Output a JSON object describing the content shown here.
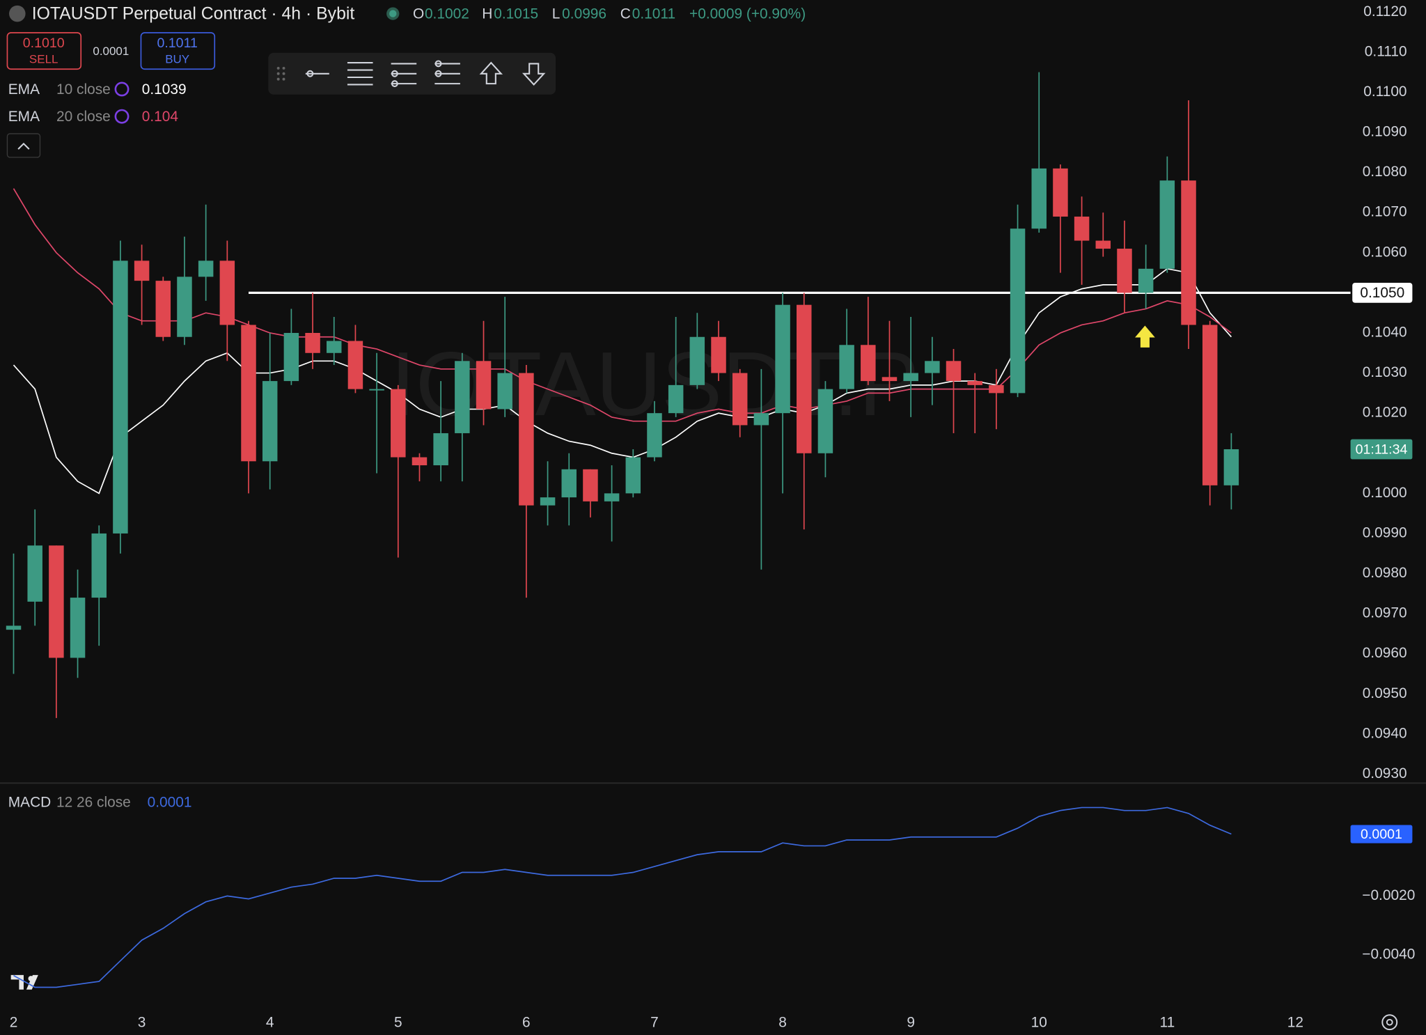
{
  "chart_data": {
    "type": "candlestick",
    "title": "IOTAUSDT Perpetual Contract · 4h · Bybit",
    "ohlc_header": {
      "o_label": "O",
      "o": 0.1002,
      "h_label": "H",
      "h": 0.1015,
      "l_label": "L",
      "l": 0.0996,
      "c_label": "C",
      "c": 0.1011,
      "change": "+0.0009 (+0.90%)"
    },
    "order_panel": {
      "sell_price": {
        "value": 0.101,
        "label": "0.1010"
      },
      "sell_label": "SELL",
      "spread": 0.0001,
      "buy_price": 0.1011,
      "buy_label": "BUY"
    },
    "watermark": "IOTAUSDT.P",
    "up_color": "#3d9a83",
    "down_color": "#e0474f",
    "grid": false,
    "x": [
      2,
      2.1667,
      2.3333,
      2.5,
      2.6667,
      2.8333,
      3,
      3.1667,
      3.3333,
      3.5,
      3.6667,
      3.8333,
      4,
      4.1667,
      4.3333,
      4.5,
      4.6667,
      4.8333,
      5,
      5.1667,
      5.3333,
      5.5,
      5.6667,
      5.8333,
      6,
      6.1667,
      6.3333,
      6.5,
      6.6667,
      6.8333,
      7,
      7.1667,
      7.3333,
      7.5,
      7.6667,
      7.8333,
      8,
      8.1667,
      8.3333,
      8.5,
      8.6667,
      8.8333,
      9,
      9.1667,
      9.3333,
      9.5,
      9.6667,
      9.8333,
      10,
      10.1667,
      10.3333,
      10.5,
      10.6667,
      10.8333,
      11,
      11.1667,
      11.3333,
      11.5
    ],
    "open": [
      0.0966,
      0.0973,
      0.0987,
      0.0959,
      0.0974,
      0.099,
      0.1058,
      0.1053,
      0.1039,
      0.1054,
      0.1058,
      0.1042,
      0.1008,
      0.1028,
      0.104,
      0.1035,
      0.1038,
      0.1026,
      0.1026,
      0.1009,
      0.1007,
      0.1015,
      0.1033,
      0.1021,
      0.103,
      0.0997,
      0.0999,
      0.1006,
      0.0998,
      0.1,
      0.1009,
      0.102,
      0.1027,
      0.1039,
      0.103,
      0.1017,
      0.102,
      0.1047,
      0.101,
      0.1026,
      0.1037,
      0.1029,
      0.1028,
      0.103,
      0.1033,
      0.1028,
      0.1027,
      0.1025,
      0.1066,
      0.1081,
      0.1069,
      0.1063,
      0.1061,
      0.105,
      0.1056,
      0.1078,
      0.1042,
      0.1002
    ],
    "high": [
      0.0985,
      0.0996,
      0.0987,
      0.0981,
      0.0992,
      0.1063,
      0.1062,
      0.1054,
      0.1064,
      0.1072,
      0.1063,
      0.1043,
      0.104,
      0.1046,
      0.105,
      0.1044,
      0.1042,
      0.1035,
      0.1027,
      0.101,
      0.1028,
      0.1035,
      0.1043,
      0.1049,
      0.1032,
      0.1008,
      0.101,
      0.1006,
      0.1007,
      0.1011,
      0.1023,
      0.1044,
      0.1045,
      0.1043,
      0.1031,
      0.1031,
      0.105,
      0.105,
      0.1028,
      0.1046,
      0.1049,
      0.1043,
      0.1044,
      0.1039,
      0.1036,
      0.103,
      0.1031,
      0.1072,
      0.1105,
      0.1082,
      0.1074,
      0.107,
      0.1068,
      0.1062,
      0.1084,
      0.1098,
      0.1043,
      0.1015
    ],
    "low": [
      0.0955,
      0.0967,
      0.0944,
      0.0954,
      0.0962,
      0.0985,
      0.1042,
      0.1038,
      0.1037,
      0.1048,
      0.1033,
      0.1,
      0.1001,
      0.1027,
      0.1031,
      0.1032,
      0.1025,
      0.1005,
      0.0984,
      0.1003,
      0.1003,
      0.1003,
      0.1017,
      0.1019,
      0.0974,
      0.0992,
      0.0992,
      0.0994,
      0.0988,
      0.0999,
      0.1008,
      0.1019,
      0.1026,
      0.1028,
      0.1014,
      0.0981,
      0.1,
      0.0991,
      0.1004,
      0.1025,
      0.1027,
      0.1023,
      0.1019,
      0.1022,
      0.1015,
      0.1015,
      0.1016,
      0.1024,
      0.1065,
      0.1055,
      0.1052,
      0.1059,
      0.1045,
      0.1046,
      0.1055,
      0.1036,
      0.0997,
      0.0996
    ],
    "close": [
      0.0967,
      0.0987,
      0.0959,
      0.0974,
      0.099,
      0.1058,
      0.1053,
      0.1039,
      0.1054,
      0.1058,
      0.1042,
      0.1008,
      0.1028,
      0.104,
      0.1035,
      0.1038,
      0.1026,
      0.1026,
      0.1009,
      0.1007,
      0.1015,
      0.1033,
      0.1021,
      0.103,
      0.0997,
      0.0999,
      0.1006,
      0.0998,
      0.1,
      0.1009,
      0.102,
      0.1027,
      0.1039,
      0.103,
      0.1017,
      0.102,
      0.1047,
      0.101,
      0.1026,
      0.1037,
      0.1028,
      0.1028,
      0.103,
      0.1033,
      0.1028,
      0.1027,
      0.1025,
      0.1066,
      0.1081,
      0.1069,
      0.1063,
      0.1061,
      0.105,
      0.1056,
      0.1078,
      0.1042,
      0.1002,
      0.1011
    ],
    "indicators": [
      {
        "name": "EMA",
        "params": "10 close",
        "color": "#ffffff",
        "values": [
          0.1032,
          0.1026,
          0.1009,
          0.1003,
          0.1,
          0.1014,
          0.1018,
          0.1022,
          0.1028,
          0.1033,
          0.1035,
          0.103,
          0.103,
          0.1031,
          0.1033,
          0.1033,
          0.1031,
          0.1028,
          0.1025,
          0.1021,
          0.1019,
          0.1021,
          0.1021,
          0.1022,
          0.1018,
          0.1015,
          0.1013,
          0.1012,
          0.101,
          0.1009,
          0.1011,
          0.1014,
          0.1018,
          0.102,
          0.1019,
          0.1019,
          0.1021,
          0.102,
          0.1022,
          0.1025,
          0.1026,
          0.1026,
          0.1027,
          0.1027,
          0.1028,
          0.1028,
          0.1027,
          0.1037,
          0.1045,
          0.1049,
          0.1051,
          0.1052,
          0.1052,
          0.1052,
          0.1056,
          0.1055,
          0.1045,
          0.1039
        ]
      },
      {
        "name": "EMA",
        "params": "20 close",
        "color": "#e0476a",
        "values": [
          0.1076,
          0.1067,
          0.106,
          0.1055,
          0.1051,
          0.1045,
          0.1043,
          0.1043,
          0.1043,
          0.1045,
          0.1044,
          0.1042,
          0.104,
          0.1039,
          0.1039,
          0.1039,
          0.1037,
          0.1036,
          0.1034,
          0.1032,
          0.1031,
          0.1031,
          0.1031,
          0.1031,
          0.1028,
          0.1026,
          0.1024,
          0.1022,
          0.1019,
          0.1018,
          0.1018,
          0.1018,
          0.102,
          0.1021,
          0.102,
          0.102,
          0.1022,
          0.1021,
          0.1022,
          0.1023,
          0.1025,
          0.1025,
          0.1026,
          0.1026,
          0.1026,
          0.1026,
          0.1026,
          0.1031,
          0.1037,
          0.104,
          0.1042,
          0.1043,
          0.1045,
          0.1046,
          0.1048,
          0.1047,
          0.1044,
          0.104
        ]
      }
    ],
    "hline": {
      "value": 0.105,
      "label": "0.1050",
      "x_start": 3.8333
    },
    "countdown": "01:11:34",
    "xlim": [
      1.894,
      12.43
    ],
    "xticks": [
      2,
      3,
      4,
      5,
      6,
      7,
      8,
      9,
      10,
      11,
      12
    ],
    "ylim": [
      0.0928,
      0.1123
    ],
    "yticks": [
      {
        "value": 0.112,
        "label": "0.1120"
      },
      {
        "value": 0.111,
        "label": "0.1110"
      },
      {
        "value": 0.11,
        "label": "0.1100"
      },
      {
        "value": 0.109,
        "label": "0.1090"
      },
      {
        "value": 0.108,
        "label": "0.1080"
      },
      {
        "value": 0.107,
        "label": "0.1070"
      },
      {
        "value": 0.106,
        "label": "0.1060"
      },
      {
        "value": 0.104,
        "label": "0.1040"
      },
      {
        "value": 0.103,
        "label": "0.1030"
      },
      {
        "value": 0.102,
        "label": "0.1020"
      },
      {
        "value": 0.1,
        "label": "0.1000"
      },
      {
        "value": 0.099,
        "label": "0.0990"
      },
      {
        "value": 0.098,
        "label": "0.0980"
      },
      {
        "value": 0.097,
        "label": "0.0970"
      },
      {
        "value": 0.096,
        "label": "0.0960"
      },
      {
        "value": 0.095,
        "label": "0.0950"
      },
      {
        "value": 0.094,
        "label": "0.0940"
      },
      {
        "value": 0.093,
        "label": "0.0930"
      }
    ],
    "macd": {
      "name": "MACD",
      "params": "12 26 close",
      "color": "#3d6ae0",
      "values": [
        -0.0047,
        -0.0051,
        -0.0051,
        -0.005,
        -0.0049,
        -0.0042,
        -0.0035,
        -0.0031,
        -0.0026,
        -0.0022,
        -0.002,
        -0.0021,
        -0.0019,
        -0.0017,
        -0.0016,
        -0.0014,
        -0.0014,
        -0.0013,
        -0.0014,
        -0.0015,
        -0.0015,
        -0.0012,
        -0.0012,
        -0.0011,
        -0.0012,
        -0.0013,
        -0.0013,
        -0.0013,
        -0.0013,
        -0.0012,
        -0.001,
        -0.0008,
        -0.0006,
        -0.0005,
        -0.0005,
        -0.0005,
        -0.0002,
        -0.0003,
        -0.0003,
        -0.0001,
        -0.0001,
        -0.0001,
        0.0,
        0.0,
        0.0,
        0.0,
        0.0,
        0.0003,
        0.0007,
        0.0009,
        0.001,
        0.001,
        0.0009,
        0.0009,
        0.001,
        0.0008,
        0.0004,
        0.0001
      ],
      "ylim": [
        -0.0057,
        0.0018
      ],
      "yticks": [
        {
          "value": -0.002,
          "label": "−0.0020"
        },
        {
          "value": -0.004,
          "label": "−0.0040"
        }
      ]
    }
  }
}
